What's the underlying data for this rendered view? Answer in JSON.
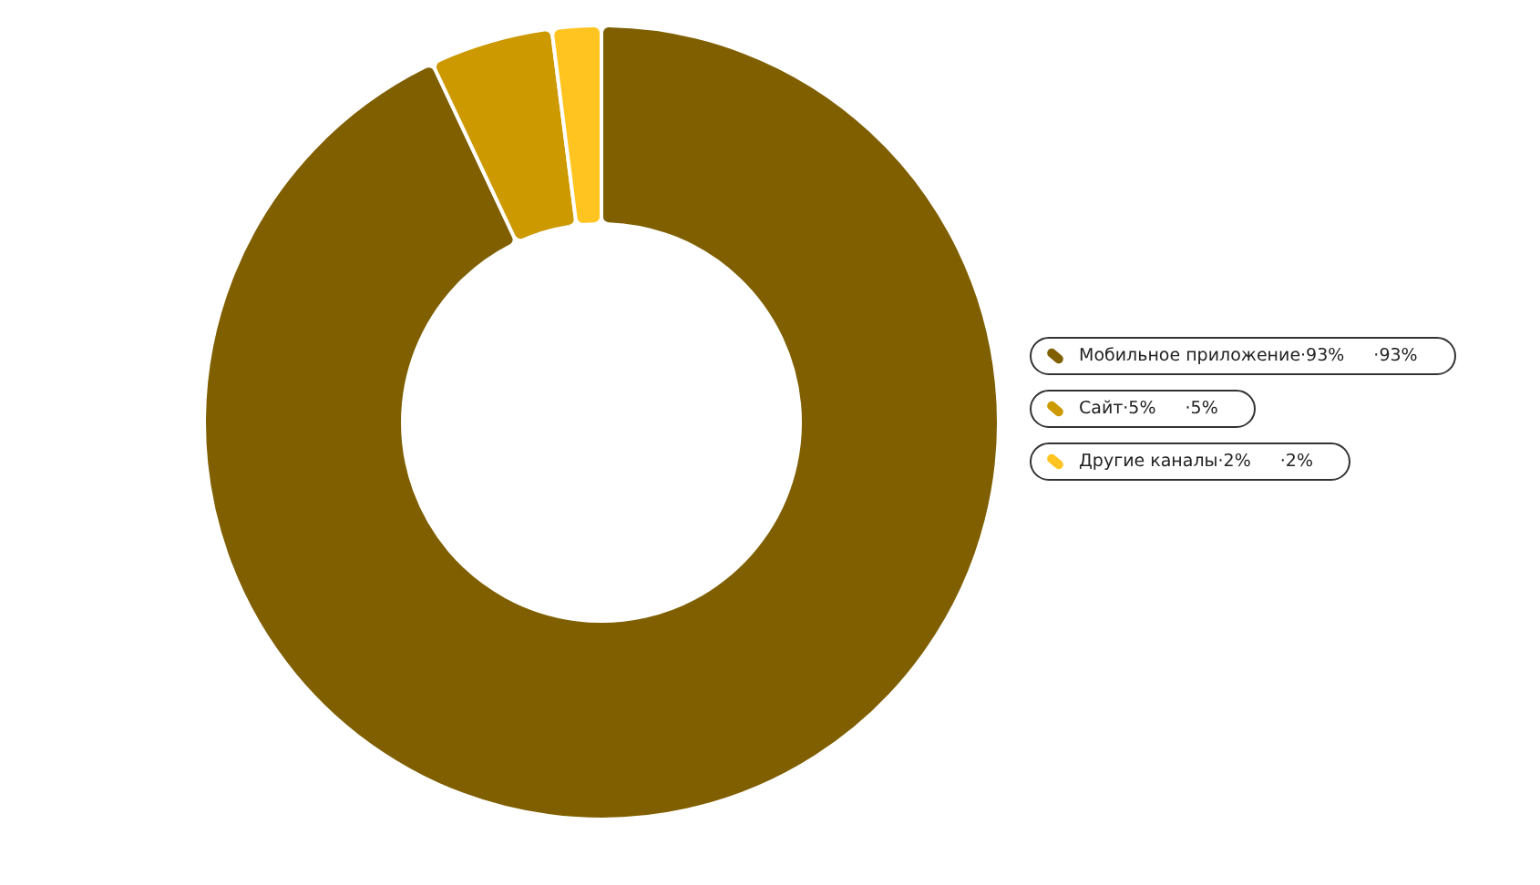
{
  "chart_data": {
    "type": "donut",
    "categories": [
      "Мобильное приложение·93%",
      "Сайт·5%",
      "Другие каналы·2%"
    ],
    "values": [
      93,
      5,
      2
    ],
    "colors": [
      "#7f5f00",
      "#cc9900",
      "#ffc41f"
    ],
    "value_labels": [
      "·93%",
      "·5%",
      "·2%"
    ],
    "legend": "right"
  }
}
